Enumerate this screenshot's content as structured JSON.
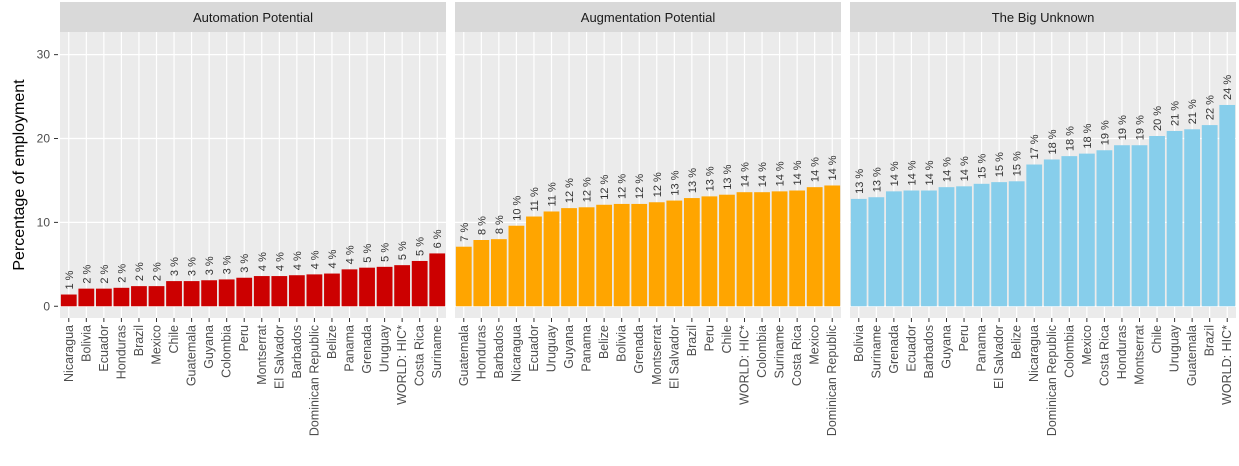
{
  "chart_data": {
    "type": "bar",
    "y_label": "Percentage of employment",
    "ylim": [
      -1.4,
      32.7
    ],
    "yticks": [
      0,
      10,
      20,
      30
    ],
    "grid": true,
    "panels": [
      {
        "title": "Automation Potential",
        "color": "#cc0000",
        "categories": [
          "Nicaragua",
          "Bolivia",
          "Ecuador",
          "Honduras",
          "Brazil",
          "Mexico",
          "Chile",
          "Guatemala",
          "Guyana",
          "Colombia",
          "Peru",
          "Montserrat",
          "El Salvador",
          "Barbados",
          "Dominican Republic",
          "Belize",
          "Panama",
          "Grenada",
          "Uruguay",
          "WORLD: HIC*",
          "Costa Rica",
          "Suriname"
        ],
        "values": [
          1.4,
          2.1,
          2.1,
          2.2,
          2.4,
          2.4,
          3.0,
          3.0,
          3.1,
          3.2,
          3.4,
          3.6,
          3.6,
          3.7,
          3.8,
          3.9,
          4.4,
          4.6,
          4.7,
          4.9,
          5.4,
          6.3
        ],
        "value_labels": [
          "1 %",
          "2 %",
          "2 %",
          "2 %",
          "2 %",
          "2 %",
          "3 %",
          "3 %",
          "3 %",
          "3 %",
          "3 %",
          "4 %",
          "4 %",
          "4 %",
          "4 %",
          "4 %",
          "4 %",
          "5 %",
          "5 %",
          "5 %",
          "5 %",
          "6 %"
        ]
      },
      {
        "title": "Augmentation Potential",
        "color": "#ffa500",
        "categories": [
          "Guatemala",
          "Honduras",
          "Barbados",
          "Nicaragua",
          "Ecuador",
          "Uruguay",
          "Guyana",
          "Panama",
          "Belize",
          "Bolivia",
          "Grenada",
          "Montserrat",
          "El Salvador",
          "Brazil",
          "Peru",
          "Chile",
          "WORLD: HIC*",
          "Colombia",
          "Suriname",
          "Costa Rica",
          "Mexico",
          "Dominican Republic"
        ],
        "values": [
          7.1,
          7.9,
          8.0,
          9.6,
          10.7,
          11.3,
          11.7,
          11.8,
          12.1,
          12.2,
          12.2,
          12.4,
          12.6,
          12.9,
          13.1,
          13.3,
          13.6,
          13.6,
          13.7,
          13.8,
          14.2,
          14.4
        ],
        "value_labels": [
          "7 %",
          "8 %",
          "8 %",
          "10 %",
          "11 %",
          "11 %",
          "12 %",
          "12 %",
          "12 %",
          "12 %",
          "12 %",
          "12 %",
          "13 %",
          "13 %",
          "13 %",
          "13 %",
          "14 %",
          "14 %",
          "14 %",
          "14 %",
          "14 %",
          "14 %"
        ]
      },
      {
        "title": "The Big Unknown",
        "color": "#87ceeb",
        "categories": [
          "Bolivia",
          "Suriname",
          "Grenada",
          "Ecuador",
          "Barbados",
          "Guyana",
          "Peru",
          "Panama",
          "El Salvador",
          "Belize",
          "Nicaragua",
          "Dominican Republic",
          "Colombia",
          "Mexico",
          "Costa Rica",
          "Honduras",
          "Montserrat",
          "Chile",
          "Uruguay",
          "Guatemala",
          "Brazil",
          "WORLD: HIC*"
        ],
        "values": [
          12.8,
          13.0,
          13.7,
          13.8,
          13.8,
          14.2,
          14.3,
          14.6,
          14.8,
          14.9,
          16.9,
          17.5,
          17.9,
          18.2,
          18.6,
          19.2,
          19.2,
          20.3,
          20.9,
          21.1,
          21.6,
          24.0
        ],
        "value_labels": [
          "13 %",
          "13 %",
          "14 %",
          "14 %",
          "14 %",
          "14 %",
          "14 %",
          "15 %",
          "15 %",
          "15 %",
          "17 %",
          "18 %",
          "18 %",
          "18 %",
          "19 %",
          "19 %",
          "19 %",
          "20 %",
          "21 %",
          "21 %",
          "22 %",
          "24 %"
        ]
      }
    ]
  }
}
